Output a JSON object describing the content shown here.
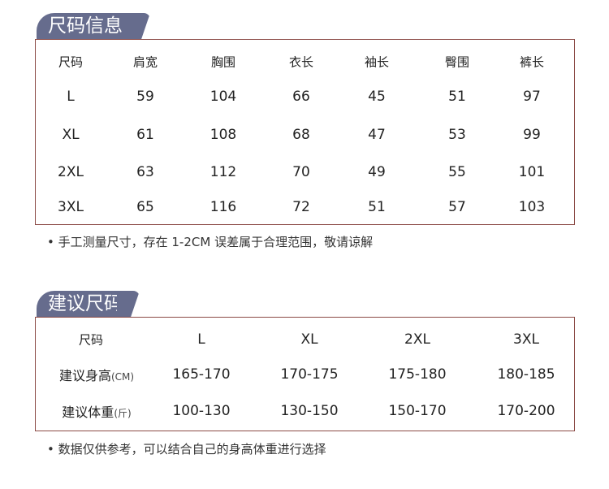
{
  "size_info": {
    "title": "尺码信息",
    "headers": [
      "尺码",
      "肩宽",
      "胸围",
      "衣长",
      "袖长",
      "臀围",
      "裤长"
    ],
    "rows": [
      [
        "L",
        "59",
        "104",
        "66",
        "45",
        "51",
        "97"
      ],
      [
        "XL",
        "61",
        "108",
        "68",
        "47",
        "53",
        "99"
      ],
      [
        "2XL",
        "63",
        "112",
        "70",
        "49",
        "55",
        "101"
      ],
      [
        "3XL",
        "65",
        "116",
        "72",
        "51",
        "57",
        "103"
      ]
    ],
    "note": "• 手工测量尺寸，存在 1-2CM 误差属于合理范围，敬请谅解"
  },
  "suggested_size": {
    "title": "建议尺码",
    "header_label": "尺码",
    "sizes": [
      "L",
      "XL",
      "2XL",
      "3XL"
    ],
    "rows": [
      {
        "label": "建议身高",
        "unit": "(CM)",
        "values": [
          "165-170",
          "170-175",
          "175-180",
          "180-185"
        ]
      },
      {
        "label": "建议体重",
        "unit": "(斤)",
        "values": [
          "100-130",
          "130-150",
          "150-170",
          "170-200"
        ]
      }
    ],
    "note": "• 数据仅供参考，可以结合自己的身高体重进行选择"
  },
  "colors": {
    "tab": "#666c8d",
    "border": "#8b4a45"
  }
}
